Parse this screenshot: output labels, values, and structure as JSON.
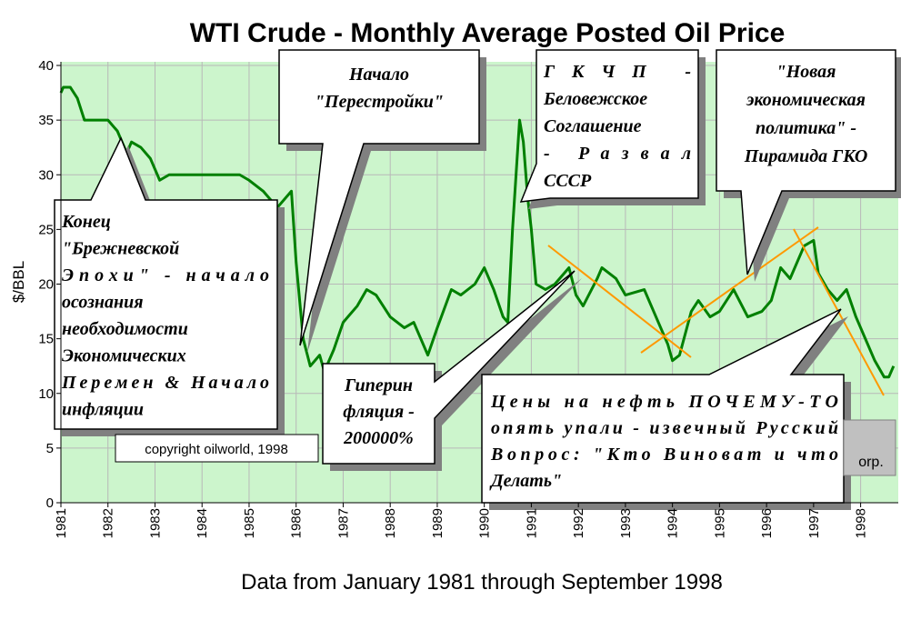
{
  "chart_data": {
    "type": "line",
    "title": "WTI Crude - Monthly Average Posted Oil Price",
    "x_label": "Data from January 1981 through September 1998",
    "y_label": "$/BBL",
    "xlim": [
      1981,
      1998.8
    ],
    "xticks": [
      1981,
      1982,
      1983,
      1984,
      1985,
      1986,
      1987,
      1988,
      1989,
      1990,
      1991,
      1992,
      1993,
      1994,
      1995,
      1996,
      1997,
      1998
    ],
    "ylim": [
      0,
      40
    ],
    "yticks": [
      0,
      5,
      10,
      15,
      20,
      25,
      30,
      35,
      40
    ],
    "grid": true,
    "series": [
      {
        "color": "#008000",
        "x": [
          1981.0,
          1981.05,
          1981.2,
          1981.35,
          1981.5,
          1981.7,
          1982.0,
          1982.2,
          1982.3,
          1982.4,
          1982.5,
          1982.7,
          1982.9,
          1983.1,
          1983.3,
          1984.0,
          1984.8,
          1985.0,
          1985.3,
          1985.6,
          1985.9,
          1986.0,
          1986.15,
          1986.3,
          1986.5,
          1986.6,
          1986.8,
          1987.0,
          1987.3,
          1987.5,
          1987.7,
          1988.0,
          1988.3,
          1988.5,
          1988.8,
          1989.0,
          1989.3,
          1989.5,
          1989.8,
          1990.0,
          1990.2,
          1990.4,
          1990.5,
          1990.6,
          1990.75,
          1990.83,
          1990.92,
          1991.0,
          1991.1,
          1991.3,
          1991.5,
          1991.8,
          1991.95,
          1992.1,
          1992.4,
          1992.5,
          1992.8,
          1993.0,
          1993.4,
          1993.6,
          1993.9,
          1994.0,
          1994.15,
          1994.4,
          1994.55,
          1994.8,
          1995.0,
          1995.3,
          1995.6,
          1995.9,
          1996.1,
          1996.3,
          1996.5,
          1996.8,
          1997.0,
          1997.1,
          1997.3,
          1997.5,
          1997.7,
          1997.9,
          1998.1,
          1998.3,
          1998.5,
          1998.6,
          1998.7
        ],
        "values": [
          37.5,
          38,
          38,
          37,
          35,
          35,
          35,
          34,
          33,
          32,
          33,
          32.5,
          31.5,
          29.5,
          30,
          30,
          30,
          29.5,
          28.5,
          27,
          28.5,
          22,
          15,
          12.5,
          13.5,
          12,
          14,
          16.5,
          18,
          19.5,
          19,
          17,
          16,
          16.5,
          13.5,
          16,
          19.5,
          19,
          20,
          21.5,
          19.5,
          17,
          16.5,
          25,
          35,
          33,
          28,
          25,
          20,
          19.5,
          20,
          21.5,
          19,
          18,
          20.5,
          21.5,
          20.5,
          19,
          19.5,
          17.5,
          14.5,
          13,
          13.5,
          17.5,
          18.5,
          17,
          17.5,
          19.5,
          17,
          17.5,
          18.5,
          21.5,
          20.5,
          23.5,
          24,
          21,
          19.5,
          18.5,
          19.5,
          17,
          15,
          13,
          11.5,
          11.5,
          12.5
        ]
      }
    ],
    "annotations": [
      {
        "lines": [
          "Конец",
          "\"Брежневской",
          "Эпохи\"  -  начало",
          "осознания",
          "необходимости",
          "Экономических",
          "Перемен & Начало",
          "инфляции"
        ]
      },
      {
        "lines": [
          "Начало",
          "\"Перестройки\""
        ]
      },
      {
        "lines": [
          "ГКЧП -",
          "Беловежское",
          "Соглашение",
          "- Развал",
          "СССР"
        ]
      },
      {
        "lines": [
          "\"Новая",
          "экономическая",
          "политика\" -",
          "Пирамида ГКО"
        ]
      },
      {
        "lines": [
          "Гиперин",
          "фляция -",
          "200000%"
        ]
      },
      {
        "lines": [
          "Цены на нефть ПОЧЕМУ-ТО",
          "опять упали - извечный Русский",
          "Вопрос: \"Кто Виноват и что",
          "Делать\""
        ]
      },
      {
        "lines": [
          "copyright oilworld, 1998"
        ]
      },
      {
        "lines": [
          "orp."
        ]
      }
    ]
  }
}
